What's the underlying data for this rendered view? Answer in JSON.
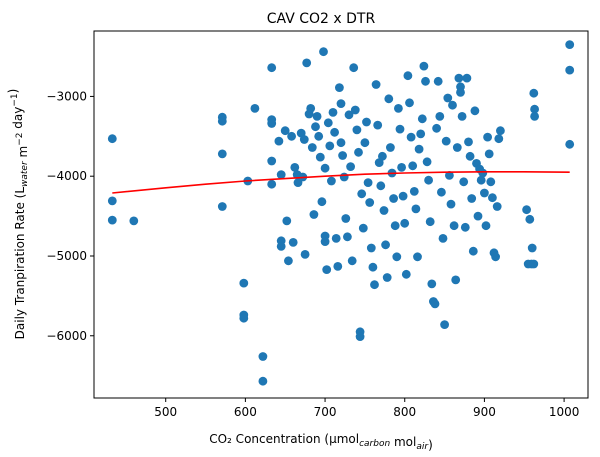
{
  "chart_data": {
    "type": "scatter",
    "title": "CAV CO2 x DTR",
    "xlabel": "CO₂ Concentration (µmol_carbon mol_air)",
    "ylabel": "Daily Tranpiration Rate (L_water m⁻² day⁻¹)",
    "xlim": [
      410,
      1030
    ],
    "ylim": [
      -6780,
      -2180
    ],
    "xticks": [
      500,
      600,
      700,
      800,
      900,
      1000
    ],
    "yticks": [
      -6000,
      -5000,
      -4000,
      -3000
    ],
    "grid": false,
    "colors": {
      "points": "#1f77b4",
      "fit": "#ff0000"
    },
    "fit_line": {
      "x": [
        433,
        500,
        550,
        600,
        650,
        700,
        750,
        800,
        850,
        900,
        950,
        1007
      ],
      "y": [
        -4210,
        -4145,
        -4100,
        -4060,
        -4030,
        -4000,
        -3975,
        -3960,
        -3950,
        -3945,
        -3945,
        -3950
      ]
    },
    "series": [
      {
        "points": [
          [
            433,
            -3530
          ],
          [
            433,
            -4310
          ],
          [
            433,
            -4550
          ],
          [
            460,
            -4560
          ],
          [
            571,
            -3260
          ],
          [
            571,
            -3310
          ],
          [
            571,
            -3720
          ],
          [
            571,
            -4380
          ],
          [
            598,
            -5340
          ],
          [
            598,
            -5740
          ],
          [
            598,
            -5780
          ],
          [
            603,
            -4060
          ],
          [
            612,
            -3150
          ],
          [
            622,
            -6260
          ],
          [
            622,
            -6570
          ],
          [
            633,
            -2640
          ],
          [
            633,
            -3290
          ],
          [
            633,
            -3340
          ],
          [
            633,
            -3810
          ],
          [
            633,
            -4100
          ],
          [
            642,
            -3560
          ],
          [
            645,
            -3980
          ],
          [
            645,
            -4810
          ],
          [
            645,
            -4880
          ],
          [
            650,
            -3430
          ],
          [
            652,
            -4560
          ],
          [
            654,
            -5060
          ],
          [
            658,
            -3500
          ],
          [
            660,
            -4830
          ],
          [
            662,
            -3890
          ],
          [
            665,
            -3980
          ],
          [
            666,
            -4080
          ],
          [
            670,
            -3460
          ],
          [
            672,
            -4010
          ],
          [
            674,
            -3540
          ],
          [
            675,
            -4980
          ],
          [
            677,
            -2580
          ],
          [
            680,
            -3220
          ],
          [
            682,
            -3150
          ],
          [
            684,
            -3640
          ],
          [
            686,
            -4480
          ],
          [
            688,
            -3380
          ],
          [
            690,
            -3250
          ],
          [
            692,
            -3500
          ],
          [
            694,
            -3760
          ],
          [
            696,
            -4320
          ],
          [
            698,
            -2440
          ],
          [
            700,
            -3900
          ],
          [
            700,
            -4750
          ],
          [
            700,
            -4820
          ],
          [
            702,
            -5170
          ],
          [
            704,
            -3330
          ],
          [
            706,
            -3620
          ],
          [
            708,
            -4060
          ],
          [
            710,
            -3200
          ],
          [
            712,
            -3450
          ],
          [
            714,
            -4780
          ],
          [
            716,
            -5130
          ],
          [
            718,
            -2890
          ],
          [
            720,
            -3090
          ],
          [
            720,
            -3580
          ],
          [
            722,
            -3740
          ],
          [
            724,
            -4010
          ],
          [
            726,
            -4530
          ],
          [
            728,
            -4760
          ],
          [
            730,
            -3230
          ],
          [
            732,
            -3880
          ],
          [
            734,
            -5060
          ],
          [
            736,
            -2640
          ],
          [
            738,
            -3170
          ],
          [
            740,
            -3420
          ],
          [
            742,
            -3700
          ],
          [
            744,
            -5950
          ],
          [
            744,
            -6010
          ],
          [
            746,
            -4220
          ],
          [
            748,
            -4650
          ],
          [
            750,
            -3580
          ],
          [
            752,
            -3320
          ],
          [
            754,
            -4080
          ],
          [
            756,
            -4330
          ],
          [
            758,
            -4900
          ],
          [
            760,
            -5140
          ],
          [
            762,
            -5360
          ],
          [
            764,
            -2850
          ],
          [
            766,
            -3360
          ],
          [
            768,
            -3830
          ],
          [
            770,
            -4120
          ],
          [
            772,
            -3750
          ],
          [
            774,
            -4430
          ],
          [
            776,
            -4860
          ],
          [
            778,
            -5270
          ],
          [
            780,
            -3030
          ],
          [
            782,
            -3640
          ],
          [
            784,
            -3960
          ],
          [
            786,
            -4280
          ],
          [
            788,
            -4620
          ],
          [
            790,
            -5010
          ],
          [
            792,
            -3150
          ],
          [
            794,
            -3410
          ],
          [
            796,
            -3890
          ],
          [
            798,
            -4250
          ],
          [
            800,
            -4590
          ],
          [
            802,
            -5230
          ],
          [
            804,
            -2740
          ],
          [
            806,
            -3080
          ],
          [
            808,
            -3510
          ],
          [
            810,
            -3870
          ],
          [
            812,
            -4190
          ],
          [
            814,
            -4410
          ],
          [
            816,
            -5010
          ],
          [
            818,
            -3660
          ],
          [
            820,
            -3470
          ],
          [
            822,
            -3280
          ],
          [
            824,
            -2620
          ],
          [
            826,
            -2810
          ],
          [
            828,
            -3820
          ],
          [
            830,
            -4050
          ],
          [
            832,
            -4570
          ],
          [
            834,
            -5350
          ],
          [
            836,
            -5570
          ],
          [
            838,
            -5600
          ],
          [
            840,
            -3400
          ],
          [
            842,
            -2810
          ],
          [
            844,
            -3250
          ],
          [
            846,
            -4200
          ],
          [
            848,
            -4780
          ],
          [
            850,
            -5860
          ],
          [
            852,
            -3560
          ],
          [
            854,
            -3020
          ],
          [
            856,
            -3990
          ],
          [
            858,
            -4350
          ],
          [
            860,
            -3110
          ],
          [
            862,
            -4620
          ],
          [
            864,
            -5300
          ],
          [
            866,
            -3640
          ],
          [
            868,
            -2770
          ],
          [
            870,
            -2880
          ],
          [
            870,
            -2950
          ],
          [
            872,
            -3250
          ],
          [
            874,
            -4070
          ],
          [
            876,
            -4640
          ],
          [
            878,
            -2770
          ],
          [
            880,
            -3570
          ],
          [
            882,
            -3750
          ],
          [
            884,
            -4280
          ],
          [
            886,
            -4940
          ],
          [
            888,
            -3180
          ],
          [
            890,
            -3840
          ],
          [
            892,
            -4500
          ],
          [
            894,
            -3910
          ],
          [
            896,
            -4050
          ],
          [
            898,
            -3960
          ],
          [
            900,
            -4210
          ],
          [
            902,
            -4620
          ],
          [
            904,
            -3510
          ],
          [
            906,
            -3720
          ],
          [
            908,
            -4070
          ],
          [
            910,
            -4270
          ],
          [
            912,
            -4960
          ],
          [
            914,
            -5010
          ],
          [
            916,
            -4380
          ],
          [
            918,
            -3530
          ],
          [
            920,
            -3430
          ],
          [
            953,
            -4420
          ],
          [
            955,
            -5100
          ],
          [
            957,
            -4540
          ],
          [
            959,
            -5100
          ],
          [
            960,
            -4900
          ],
          [
            962,
            -5100
          ],
          [
            962,
            -2960
          ],
          [
            963,
            -3160
          ],
          [
            963,
            -3250
          ],
          [
            1007,
            -2350
          ],
          [
            1007,
            -2670
          ],
          [
            1007,
            -3600
          ]
        ]
      }
    ]
  }
}
